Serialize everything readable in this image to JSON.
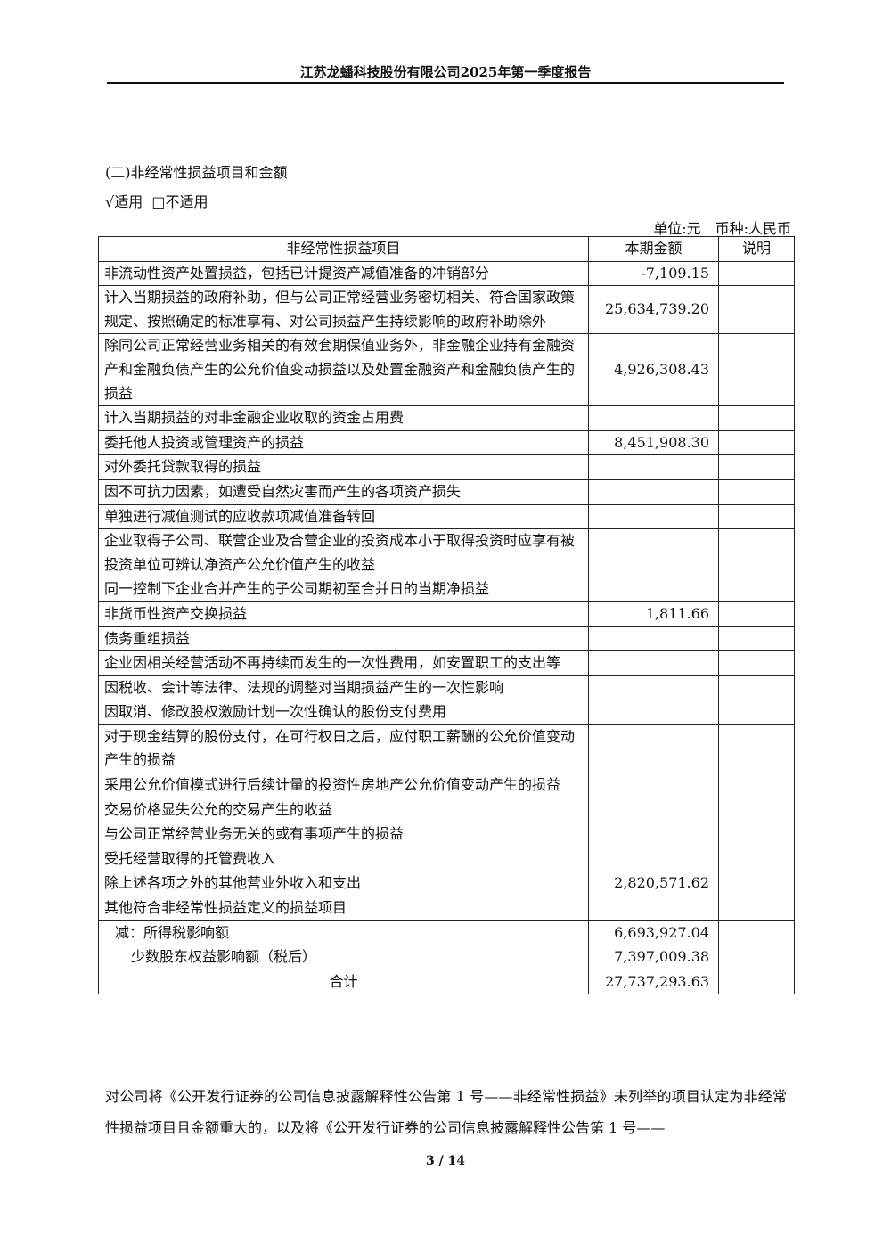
{
  "header": {
    "title": "江苏龙蟠科技股份有限公司2025年第一季度报告"
  },
  "section": {
    "title": "(二)非经常性损益项目和金额",
    "applicable": "√适用",
    "not_applicable": "□不适用",
    "unit": "单位:元　币种:人民币"
  },
  "table": {
    "headers": [
      "非经常性损益项目",
      "本期金额",
      "说明"
    ],
    "rows": [
      {
        "item": "非流动性资产处置损益，包括已计提资产减值准备的冲销部分",
        "amount": "-7,109.15",
        "note": ""
      },
      {
        "item": "计入当期损益的政府补助，但与公司正常经营业务密切相关、符合国家政策规定、按照确定的标准享有、对公司损益产生持续影响的政府补助除外",
        "amount": "25,634,739.20",
        "note": ""
      },
      {
        "item": "除同公司正常经营业务相关的有效套期保值业务外，非金融企业持有金融资产和金融负债产生的公允价值变动损益以及处置金融资产和金融负债产生的损益",
        "amount": "4,926,308.43",
        "note": ""
      },
      {
        "item": "计入当期损益的对非金融企业收取的资金占用费",
        "amount": "",
        "note": ""
      },
      {
        "item": "委托他人投资或管理资产的损益",
        "amount": "8,451,908.30",
        "note": ""
      },
      {
        "item": "对外委托贷款取得的损益",
        "amount": "",
        "note": ""
      },
      {
        "item": "因不可抗力因素，如遭受自然灾害而产生的各项资产损失",
        "amount": "",
        "note": ""
      },
      {
        "item": "单独进行减值测试的应收款项减值准备转回",
        "amount": "",
        "note": ""
      },
      {
        "item": "企业取得子公司、联营企业及合营企业的投资成本小于取得投资时应享有被投资单位可辨认净资产公允价值产生的收益",
        "amount": "",
        "note": ""
      },
      {
        "item": "同一控制下企业合并产生的子公司期初至合并日的当期净损益",
        "amount": "",
        "note": ""
      },
      {
        "item": "非货币性资产交换损益",
        "amount": "1,811.66",
        "note": ""
      },
      {
        "item": "债务重组损益",
        "amount": "",
        "note": ""
      },
      {
        "item": "企业因相关经营活动不再持续而发生的一次性费用，如安置职工的支出等",
        "amount": "",
        "note": ""
      },
      {
        "item": "因税收、会计等法律、法规的调整对当期损益产生的一次性影响",
        "amount": "",
        "note": ""
      },
      {
        "item": "因取消、修改股权激励计划一次性确认的股份支付费用",
        "amount": "",
        "note": ""
      },
      {
        "item": "对于现金结算的股份支付，在可行权日之后，应付职工薪酬的公允价值变动产生的损益",
        "amount": "",
        "note": ""
      },
      {
        "item": "采用公允价值模式进行后续计量的投资性房地产公允价值变动产生的损益",
        "amount": "",
        "note": ""
      },
      {
        "item": "交易价格显失公允的交易产生的收益",
        "amount": "",
        "note": ""
      },
      {
        "item": "与公司正常经营业务无关的或有事项产生的损益",
        "amount": "",
        "note": ""
      },
      {
        "item": "受托经营取得的托管费收入",
        "amount": "",
        "note": ""
      },
      {
        "item": "除上述各项之外的其他营业外收入和支出",
        "amount": "2,820,571.62",
        "note": ""
      },
      {
        "item": "其他符合非经常性损益定义的损益项目",
        "amount": "",
        "note": ""
      },
      {
        "item": "减：所得税影响额",
        "amount": "6,693,927.04",
        "note": ""
      },
      {
        "item": "少数股东权益影响额（税后）",
        "amount": "7,397,009.38",
        "note": ""
      },
      {
        "item": "合计",
        "amount": "27,737,293.63",
        "note": ""
      }
    ]
  },
  "paragraph": "对公司将《公开发行证券的公司信息披露解释性公告第 1 号——非经常性损益》未列举的项目认定为非经常性损益项目且金额重大的，以及将《公开发行证券的公司信息披露解释性公告第 1 号——",
  "footer": {
    "page": "3 / 14"
  }
}
